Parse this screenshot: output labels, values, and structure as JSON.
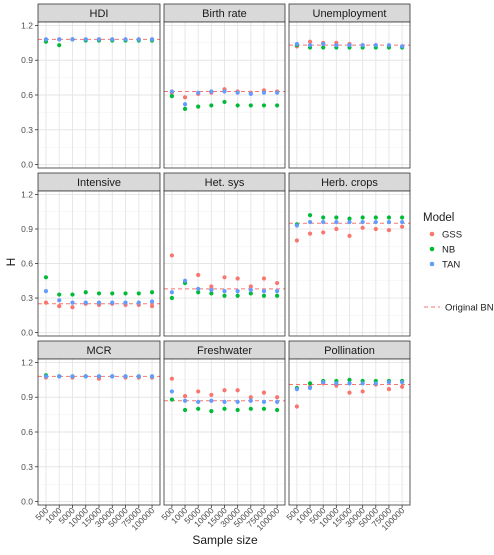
{
  "chart_data": {
    "type": "scatter",
    "xlabel": "Sample size",
    "ylabel": "H",
    "categories": [
      "500",
      "1000",
      "5000",
      "10000",
      "15000",
      "30000",
      "50000",
      "75000",
      "100000"
    ],
    "yticks": [
      0.0,
      0.3,
      0.6,
      0.9,
      1.2
    ],
    "ylim": [
      -0.03,
      1.23
    ],
    "grid": true,
    "legend": {
      "title": "Model",
      "placement": "right",
      "entries": [
        {
          "name": "GSS",
          "color": "#F8766D"
        },
        {
          "name": "NB",
          "color": "#00BA38"
        },
        {
          "name": "TAN",
          "color": "#619CFF"
        }
      ],
      "reference_label": "Original BN",
      "reference_color": "#F8766D"
    },
    "panels": [
      {
        "title": "HDI",
        "reference": 1.08,
        "series": [
          {
            "name": "GSS",
            "values": [
              1.08,
              1.08,
              1.08,
              1.08,
              1.08,
              1.08,
              1.08,
              1.08,
              1.08
            ]
          },
          {
            "name": "NB",
            "values": [
              1.06,
              1.03,
              1.08,
              1.07,
              1.07,
              1.07,
              1.07,
              1.07,
              1.07
            ]
          },
          {
            "name": "TAN",
            "values": [
              1.08,
              1.08,
              1.08,
              1.08,
              1.08,
              1.08,
              1.08,
              1.08,
              1.08
            ]
          }
        ]
      },
      {
        "title": "Birth rate",
        "reference": 0.63,
        "series": [
          {
            "name": "GSS",
            "values": [
              0.62,
              0.58,
              0.61,
              0.62,
              0.65,
              0.63,
              0.62,
              0.64,
              0.63
            ]
          },
          {
            "name": "NB",
            "values": [
              0.59,
              0.48,
              0.5,
              0.51,
              0.54,
              0.51,
              0.51,
              0.51,
              0.51
            ]
          },
          {
            "name": "TAN",
            "values": [
              0.63,
              0.52,
              0.62,
              0.63,
              0.63,
              0.62,
              0.61,
              0.62,
              0.62
            ]
          }
        ]
      },
      {
        "title": "Unemployment",
        "reference": 1.03,
        "series": [
          {
            "name": "GSS",
            "values": [
              1.02,
              1.06,
              1.05,
              1.05,
              1.04,
              1.03,
              1.03,
              1.02,
              1.02
            ]
          },
          {
            "name": "NB",
            "values": [
              1.03,
              1.01,
              1.01,
              1.01,
              1.01,
              1.01,
              1.01,
              1.01,
              1.01
            ]
          },
          {
            "name": "TAN",
            "values": [
              1.04,
              1.03,
              1.04,
              1.03,
              1.03,
              1.03,
              1.03,
              1.03,
              1.02
            ]
          }
        ]
      },
      {
        "title": "Intensive",
        "reference": 0.25,
        "series": [
          {
            "name": "GSS",
            "values": [
              0.26,
              0.23,
              0.22,
              0.25,
              0.24,
              0.25,
              0.24,
              0.24,
              0.23
            ]
          },
          {
            "name": "NB",
            "values": [
              0.48,
              0.33,
              0.33,
              0.35,
              0.34,
              0.34,
              0.34,
              0.34,
              0.35
            ]
          },
          {
            "name": "TAN",
            "values": [
              0.36,
              0.28,
              0.26,
              0.26,
              0.26,
              0.26,
              0.26,
              0.26,
              0.27
            ]
          }
        ]
      },
      {
        "title": "Het. sys",
        "reference": 0.38,
        "series": [
          {
            "name": "GSS",
            "values": [
              0.67,
              0.44,
              0.5,
              0.4,
              0.48,
              0.47,
              0.4,
              0.47,
              0.43
            ]
          },
          {
            "name": "NB",
            "values": [
              0.3,
              0.43,
              0.35,
              0.34,
              0.32,
              0.32,
              0.34,
              0.32,
              0.32
            ]
          },
          {
            "name": "TAN",
            "values": [
              0.35,
              0.45,
              0.38,
              0.37,
              0.36,
              0.36,
              0.37,
              0.36,
              0.36
            ]
          }
        ]
      },
      {
        "title": "Herb. crops",
        "reference": 0.95,
        "series": [
          {
            "name": "GSS",
            "values": [
              0.8,
              0.86,
              0.87,
              0.9,
              0.84,
              0.91,
              0.9,
              0.89,
              0.92
            ]
          },
          {
            "name": "NB",
            "values": [
              0.94,
              1.02,
              1.0,
              1.0,
              0.99,
              1.0,
              1.0,
              1.0,
              1.0
            ]
          },
          {
            "name": "TAN",
            "values": [
              0.93,
              0.96,
              0.96,
              0.96,
              0.96,
              0.96,
              0.96,
              0.96,
              0.96
            ]
          }
        ]
      },
      {
        "title": "MCR",
        "reference": 1.08,
        "series": [
          {
            "name": "GSS",
            "values": [
              1.07,
              1.08,
              1.07,
              1.08,
              1.06,
              1.08,
              1.07,
              1.07,
              1.07
            ]
          },
          {
            "name": "NB",
            "values": [
              1.09,
              1.08,
              1.08,
              1.08,
              1.08,
              1.08,
              1.08,
              1.08,
              1.08
            ]
          },
          {
            "name": "TAN",
            "values": [
              1.08,
              1.08,
              1.08,
              1.08,
              1.08,
              1.08,
              1.08,
              1.08,
              1.08
            ]
          }
        ]
      },
      {
        "title": "Freshwater",
        "reference": 0.87,
        "series": [
          {
            "name": "GSS",
            "values": [
              1.06,
              0.91,
              0.95,
              0.92,
              0.96,
              0.96,
              0.9,
              0.94,
              0.9
            ]
          },
          {
            "name": "NB",
            "values": [
              0.88,
              0.79,
              0.8,
              0.78,
              0.8,
              0.79,
              0.8,
              0.8,
              0.79
            ]
          },
          {
            "name": "TAN",
            "values": [
              0.95,
              0.87,
              0.86,
              0.87,
              0.86,
              0.86,
              0.87,
              0.86,
              0.86
            ]
          }
        ]
      },
      {
        "title": "Pollination",
        "reference": 1.01,
        "series": [
          {
            "name": "GSS",
            "values": [
              0.82,
              0.99,
              1.02,
              1.0,
              0.94,
              0.95,
              1.01,
              0.97,
              0.99
            ]
          },
          {
            "name": "NB",
            "values": [
              0.98,
              1.02,
              1.04,
              1.04,
              1.05,
              1.04,
              1.04,
              1.04,
              1.04
            ]
          },
          {
            "name": "TAN",
            "values": [
              0.97,
              0.98,
              1.03,
              1.02,
              1.02,
              1.02,
              1.02,
              1.03,
              1.03
            ]
          }
        ]
      }
    ]
  }
}
